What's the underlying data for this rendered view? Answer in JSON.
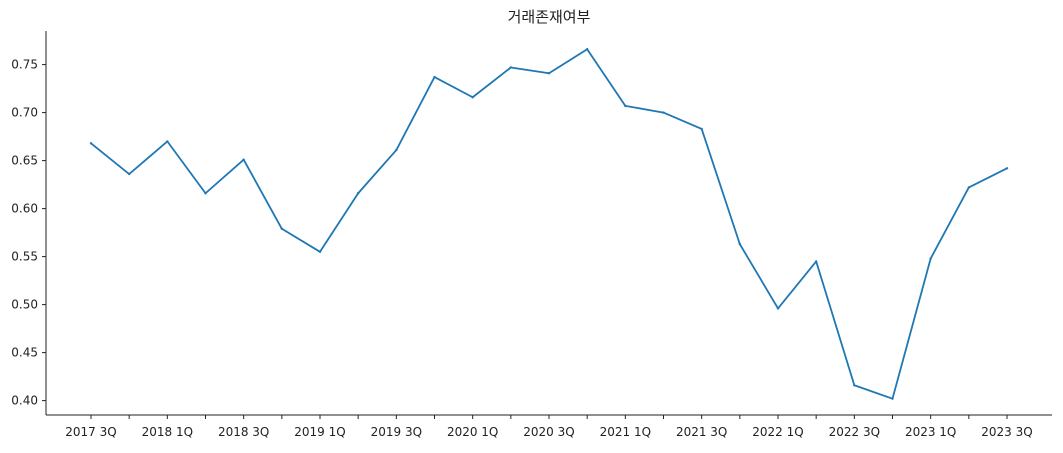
{
  "chart_data": {
    "type": "line",
    "title": "거래존재여부",
    "xlabel": "",
    "ylabel": "",
    "x": [
      "2017 3Q",
      "2017 4Q",
      "2018 1Q",
      "2018 2Q",
      "2018 3Q",
      "2018 4Q",
      "2019 1Q",
      "2019 2Q",
      "2019 3Q",
      "2019 4Q",
      "2020 1Q",
      "2020 2Q",
      "2020 3Q",
      "2020 4Q",
      "2021 1Q",
      "2021 2Q",
      "2021 3Q",
      "2021 4Q",
      "2022 1Q",
      "2022 2Q",
      "2022 3Q",
      "2022 4Q",
      "2023 1Q",
      "2023 2Q",
      "2023 3Q"
    ],
    "xtick_labels": [
      "2017 3Q",
      "2018 1Q",
      "2018 3Q",
      "2019 1Q",
      "2019 3Q",
      "2020 1Q",
      "2020 3Q",
      "2021 1Q",
      "2021 3Q",
      "2022 1Q",
      "2022 3Q",
      "2023 1Q",
      "2023 3Q"
    ],
    "series": [
      {
        "values": [
          0.668,
          0.636,
          0.67,
          0.616,
          0.651,
          0.579,
          0.555,
          0.616,
          0.661,
          0.737,
          0.716,
          0.747,
          0.741,
          0.766,
          0.707,
          0.7,
          0.683,
          0.563,
          0.496,
          0.545,
          0.416,
          0.402,
          0.548,
          0.622,
          0.642
        ],
        "color": "#1f77b4"
      }
    ],
    "ylim": [
      0.385,
      0.785
    ],
    "yticks": [
      0.4,
      0.45,
      0.5,
      0.55,
      0.6,
      0.65,
      0.7,
      0.75
    ],
    "ytick_labels": [
      "0.40",
      "0.45",
      "0.50",
      "0.55",
      "0.60",
      "0.65",
      "0.70",
      "0.75"
    ],
    "grid": false,
    "legend": "none"
  }
}
